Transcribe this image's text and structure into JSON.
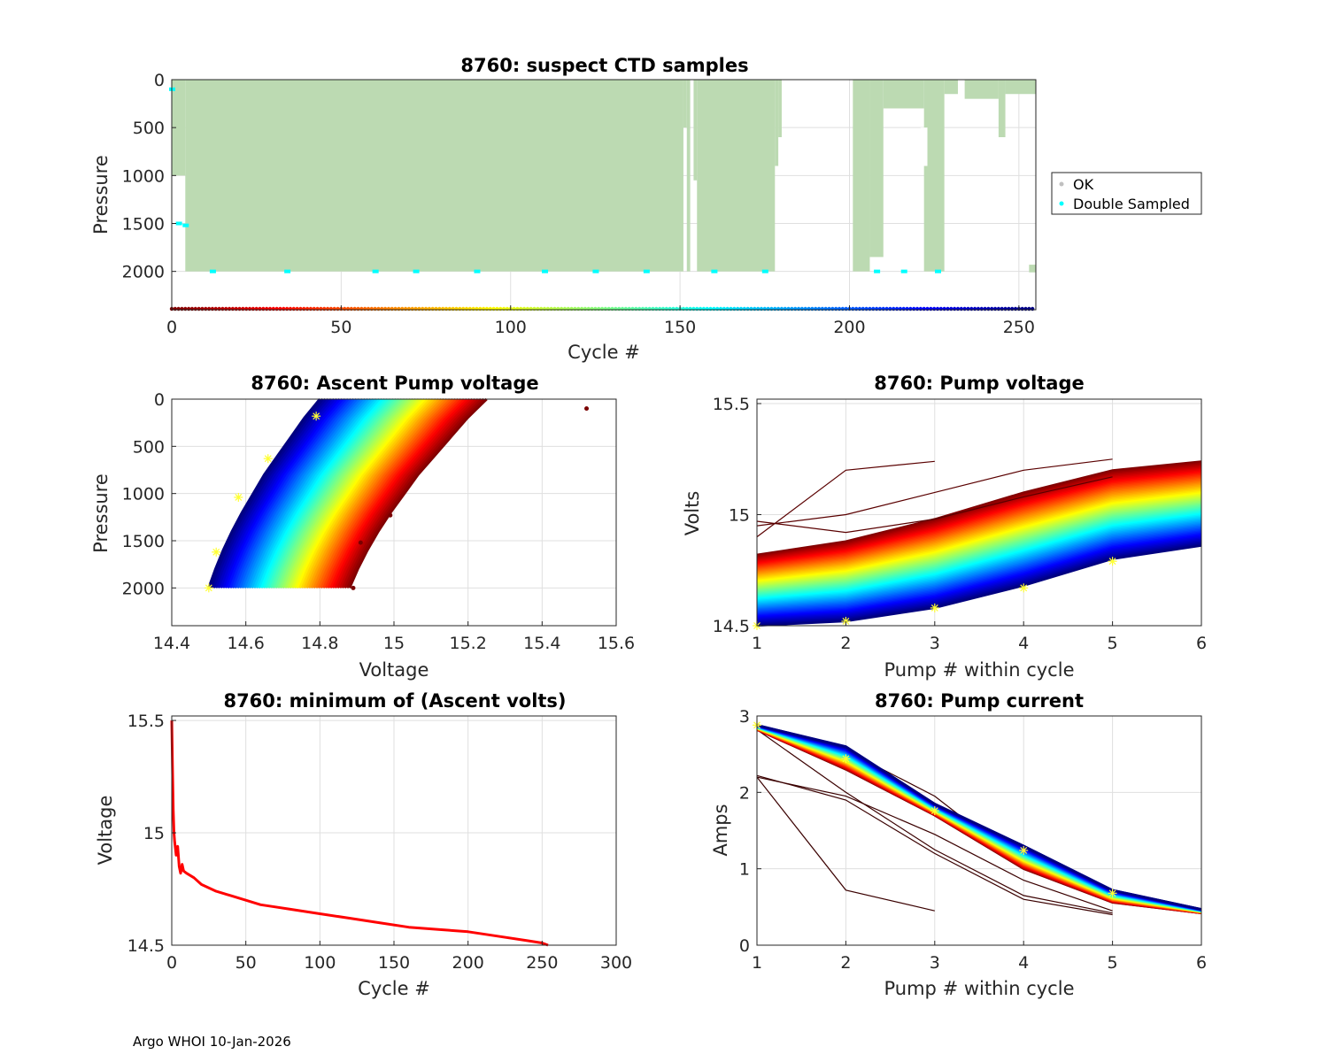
{
  "figure": {
    "float_id": "8760",
    "footer": "Argo WHOI 10-Jan-2026"
  },
  "colors": {
    "ok": "#bcdab2",
    "double_sampled": "#00ffff",
    "min_volts_line": "#ff0000",
    "marker": "#ffff33",
    "legend_ok_dot": "#c0c0c0"
  },
  "chart_data": [
    {
      "id": "ctd",
      "type": "scatter",
      "title": "8760: suspect CTD samples",
      "xlabel": "Cycle #",
      "ylabel": "Pressure",
      "xlim": [
        0,
        255
      ],
      "ylim": [
        2400,
        0
      ],
      "xticks": [
        "0",
        "50",
        "100",
        "150",
        "200",
        "250"
      ],
      "yticks": [
        "0",
        "500",
        "1000",
        "1500",
        "2000"
      ],
      "xtick_values": [
        0,
        50,
        100,
        150,
        200,
        250
      ],
      "ytick_values": [
        0,
        500,
        1000,
        1500,
        2000
      ],
      "legend": [
        "OK",
        "Double Sampled"
      ],
      "legend_position": "outside-right",
      "colorbar_row": "cycle-colored markers at pressure 2400",
      "ok_profiles": [
        {
          "from": 0,
          "to": 4,
          "pmin": 0,
          "pmax": 1000
        },
        {
          "from": 4,
          "to": 151,
          "pmin": 0,
          "pmax": 2000
        },
        {
          "from": 151,
          "to": 152,
          "pmin": 0,
          "pmax": 500
        },
        {
          "from": 152,
          "to": 153,
          "pmin": 0,
          "pmax": 2000
        },
        {
          "from": 154,
          "to": 155,
          "pmin": 0,
          "pmax": 1050
        },
        {
          "from": 155,
          "to": 178,
          "pmin": 0,
          "pmax": 2000
        },
        {
          "from": 178,
          "to": 179,
          "pmin": 0,
          "pmax": 900
        },
        {
          "from": 179,
          "to": 180,
          "pmin": 0,
          "pmax": 600
        },
        {
          "from": 201,
          "to": 206,
          "pmin": 0,
          "pmax": 2000
        },
        {
          "from": 206,
          "to": 210,
          "pmin": 0,
          "pmax": 1850
        },
        {
          "from": 210,
          "to": 222,
          "pmin": 0,
          "pmax": 300
        },
        {
          "from": 222,
          "to": 228,
          "pmin": 0,
          "pmax": 2000
        },
        {
          "from": 228,
          "to": 232,
          "pmin": 0,
          "pmax": 150
        },
        {
          "from": 234,
          "to": 244,
          "pmin": 0,
          "pmax": 200
        },
        {
          "from": 244,
          "to": 246,
          "pmin": 0,
          "pmax": 600
        },
        {
          "from": 246,
          "to": 255,
          "pmin": 0,
          "pmax": 150
        },
        {
          "from": 253,
          "to": 255,
          "pmin": 1930,
          "pmax": 2010
        }
      ],
      "ok_holes": [
        {
          "from": 211,
          "to": 213,
          "pmin": 650,
          "pmax": 850
        },
        {
          "from": 221,
          "to": 223,
          "pmin": 500,
          "pmax": 900
        }
      ],
      "double_sampled_points": [
        {
          "cycle": 0,
          "pressure": 100
        },
        {
          "cycle": 2,
          "pressure": 1500
        },
        {
          "cycle": 4,
          "pressure": 1520
        },
        {
          "cycle": 12,
          "pressure": 2000
        },
        {
          "cycle": 34,
          "pressure": 2000
        },
        {
          "cycle": 60,
          "pressure": 2000
        },
        {
          "cycle": 72,
          "pressure": 2000
        },
        {
          "cycle": 90,
          "pressure": 2000
        },
        {
          "cycle": 110,
          "pressure": 2000
        },
        {
          "cycle": 125,
          "pressure": 2000
        },
        {
          "cycle": 140,
          "pressure": 2000
        },
        {
          "cycle": 160,
          "pressure": 2000
        },
        {
          "cycle": 175,
          "pressure": 2000
        },
        {
          "cycle": 208,
          "pressure": 2000
        },
        {
          "cycle": 216,
          "pressure": 2000
        },
        {
          "cycle": 226,
          "pressure": 2000
        }
      ]
    },
    {
      "id": "ascent",
      "type": "line",
      "title": "8760: Ascent Pump voltage",
      "xlabel": "Voltage",
      "ylabel": "Pressure",
      "xlim": [
        14.4,
        15.6
      ],
      "ylim": [
        2400,
        0
      ],
      "xticks": [
        "14.4",
        "14.6",
        "14.8",
        "15",
        "15.2",
        "15.4",
        "15.6"
      ],
      "yticks": [
        "0",
        "500",
        "1000",
        "1500",
        "2000"
      ],
      "xtick_values": [
        14.4,
        14.6,
        14.8,
        15.0,
        15.2,
        15.4,
        15.6
      ],
      "ytick_values": [
        0,
        500,
        1000,
        1500,
        2000
      ],
      "series_model": "one profile per cycle; voltage at 2000 dbar from 14.50 (latest, dark blue) to 14.88 (earliest, dark red); voltage at surface from 14.80 to 15.25",
      "profile_pressures": [
        0,
        100,
        200,
        400,
        600,
        800,
        1000,
        1200,
        1400,
        1600,
        1800,
        2000
      ],
      "profile_shape": [
        1.0,
        0.93,
        0.86,
        0.74,
        0.62,
        0.5,
        0.4,
        0.3,
        0.21,
        0.13,
        0.06,
        0.0
      ],
      "outliers": [
        {
          "voltage": 15.52,
          "pressure": 100
        },
        {
          "voltage": 14.91,
          "pressure": 1520
        },
        {
          "voltage": 14.99,
          "pressure": 1230
        },
        {
          "voltage": 14.89,
          "pressure": 2000
        }
      ],
      "markers": [
        {
          "voltage": 14.5,
          "pressure": 2000
        },
        {
          "voltage": 14.52,
          "pressure": 1620
        },
        {
          "voltage": 14.58,
          "pressure": 1040
        },
        {
          "voltage": 14.66,
          "pressure": 630
        },
        {
          "voltage": 14.79,
          "pressure": 180
        }
      ]
    },
    {
      "id": "pumpv",
      "type": "line",
      "title": "8760: Pump voltage",
      "xlabel": "Pump # within cycle",
      "ylabel": "Volts",
      "xlim": [
        1,
        6
      ],
      "ylim": [
        14.5,
        15.52
      ],
      "xticks": [
        "1",
        "2",
        "3",
        "4",
        "5",
        "6"
      ],
      "yticks": [
        "14.5",
        "15",
        "15.5"
      ],
      "xtick_values": [
        1,
        2,
        3,
        4,
        5,
        6
      ],
      "ytick_values": [
        14.5,
        15.0,
        15.5
      ],
      "series_model": "one line per cycle over pumps 1-6",
      "pump_x": [
        1,
        2,
        3,
        4,
        5,
        6
      ],
      "latest_cycle_volts": [
        14.5,
        14.52,
        14.58,
        14.68,
        14.8,
        14.86
      ],
      "earliest_cycle_volts": [
        14.82,
        14.88,
        14.98,
        15.1,
        15.2,
        15.24
      ],
      "early_outlier_lines": [
        [
          14.95,
          15.0,
          15.1,
          15.2,
          15.25
        ],
        [
          14.9,
          15.2,
          15.24
        ],
        [
          14.97,
          14.92,
          14.98,
          15.08,
          15.17
        ]
      ],
      "markers": [
        {
          "pump": 1,
          "volts": 14.5
        },
        {
          "pump": 2,
          "volts": 14.52
        },
        {
          "pump": 3,
          "volts": 14.58
        },
        {
          "pump": 4,
          "volts": 14.67
        },
        {
          "pump": 5,
          "volts": 14.79
        }
      ]
    },
    {
      "id": "minv",
      "type": "line",
      "title": "8760: minimum of (Ascent volts)",
      "xlabel": "Cycle #",
      "ylabel": "Voltage",
      "xlim": [
        0,
        300
      ],
      "ylim": [
        14.5,
        15.52
      ],
      "xticks": [
        "0",
        "50",
        "100",
        "150",
        "200",
        "250",
        "300"
      ],
      "yticks": [
        "14.5",
        "15",
        "15.5"
      ],
      "xtick_values": [
        0,
        50,
        100,
        150,
        200,
        250,
        300
      ],
      "ytick_values": [
        14.5,
        15.0,
        15.5
      ],
      "x": [
        0,
        0.5,
        1,
        1.5,
        2,
        3,
        4,
        5,
        6,
        7,
        8,
        10,
        15,
        20,
        30,
        40,
        50,
        60,
        70,
        80,
        100,
        120,
        140,
        160,
        180,
        200,
        220,
        240,
        250,
        254
      ],
      "y": [
        15.5,
        15.3,
        15.1,
        15.0,
        14.96,
        14.9,
        14.94,
        14.85,
        14.82,
        14.86,
        14.83,
        14.82,
        14.8,
        14.77,
        14.74,
        14.72,
        14.7,
        14.68,
        14.67,
        14.66,
        14.64,
        14.62,
        14.6,
        14.58,
        14.57,
        14.56,
        14.54,
        14.52,
        14.51,
        14.5
      ]
    },
    {
      "id": "pumpc",
      "type": "line",
      "title": "8760: Pump current",
      "xlabel": "Pump # within cycle",
      "ylabel": "Amps",
      "xlim": [
        1,
        6
      ],
      "ylim": [
        0,
        3
      ],
      "xticks": [
        "1",
        "2",
        "3",
        "4",
        "5",
        "6"
      ],
      "yticks": [
        "0",
        "1",
        "2",
        "3"
      ],
      "xtick_values": [
        1,
        2,
        3,
        4,
        5,
        6
      ],
      "ytick_values": [
        0,
        1,
        2,
        3
      ],
      "series_model": "one line per cycle over pumps 1-6",
      "pump_x": [
        1,
        2,
        3,
        4,
        5,
        6
      ],
      "latest_cycle_amps": [
        2.88,
        2.6,
        1.85,
        1.3,
        0.72,
        0.47
      ],
      "earliest_cycle_amps": [
        2.82,
        2.3,
        1.7,
        1.0,
        0.56,
        0.42
      ],
      "early_outlier_lines": [
        [
          2.2,
          0.72,
          0.45
        ],
        [
          2.22,
          1.9,
          1.2,
          0.6,
          0.4
        ],
        [
          2.82,
          2.0,
          1.25,
          0.65,
          0.42
        ],
        [
          2.2,
          1.95,
          1.45,
          0.85,
          0.45
        ],
        [
          2.85,
          2.55,
          1.95,
          1.05,
          0.6
        ]
      ],
      "markers": [
        {
          "pump": 1,
          "amps": 2.88
        },
        {
          "pump": 2,
          "amps": 2.44
        },
        {
          "pump": 3,
          "amps": 1.76
        },
        {
          "pump": 4,
          "amps": 1.24
        },
        {
          "pump": 5,
          "amps": 0.68
        }
      ]
    }
  ]
}
